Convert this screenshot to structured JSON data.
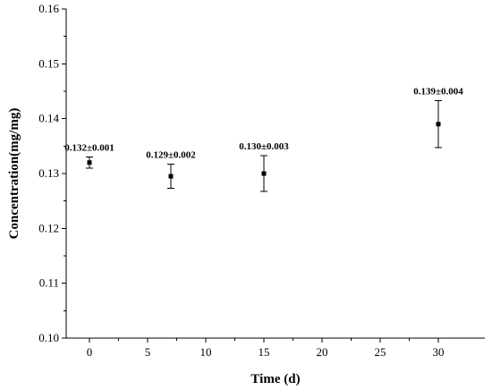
{
  "chart_data": {
    "type": "scatter",
    "title": "",
    "xlabel": "Time (d)",
    "ylabel": "Concentration(mg/mg)",
    "xlim": [
      -2,
      34
    ],
    "ylim": [
      0.1,
      0.16
    ],
    "xticks": [
      0,
      5,
      10,
      15,
      20,
      25,
      30
    ],
    "xtick_labels": [
      "0",
      "5",
      "10",
      "15",
      "20",
      "25",
      "30"
    ],
    "yticks": [
      0.1,
      0.11,
      0.12,
      0.13,
      0.14,
      0.15,
      0.16
    ],
    "ytick_labels": [
      "0.10",
      "0.11",
      "0.12",
      "0.13",
      "0.14",
      "0.15",
      "0.16"
    ],
    "grid": false,
    "legend": "none",
    "points": [
      {
        "x": 0,
        "y": 0.132,
        "err": 0.001,
        "label": "0.132±0.001"
      },
      {
        "x": 7,
        "y": 0.1295,
        "err": 0.0022,
        "label": "0.129±0.002"
      },
      {
        "x": 15,
        "y": 0.13,
        "err": 0.0033,
        "label": "0.130±0.003"
      },
      {
        "x": 30,
        "y": 0.139,
        "err": 0.0043,
        "label": "0.139±0.004"
      }
    ]
  }
}
